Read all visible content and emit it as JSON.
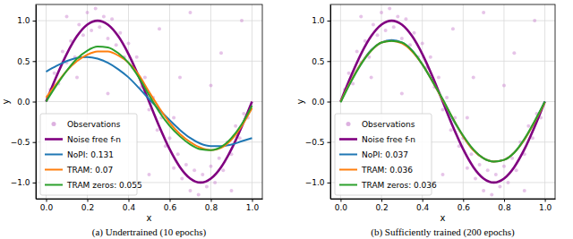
{
  "chart_data": [
    {
      "type": "line",
      "title": "(a) Undertrained (10 epochs)",
      "x_label": "x",
      "y_label": "y",
      "xlim": [
        -0.05,
        1.05
      ],
      "ylim": [
        -1.2,
        1.2
      ],
      "xticks": [
        {
          "value": 0,
          "label": "0.0"
        },
        {
          "value": 0.2,
          "label": "0.2"
        },
        {
          "value": 0.4,
          "label": "0.4"
        },
        {
          "value": 0.6,
          "label": "0.6"
        },
        {
          "value": 0.8,
          "label": "0.8"
        },
        {
          "value": 1,
          "label": "1.0"
        }
      ],
      "yticks": [
        {
          "value": -1,
          "label": "−1.0"
        },
        {
          "value": -0.5,
          "label": "−0.5"
        },
        {
          "value": 0,
          "label": "0.0"
        },
        {
          "value": 0.5,
          "label": "0.5"
        },
        {
          "value": 1,
          "label": "1.0"
        }
      ],
      "grid": true,
      "legend": "lower left",
      "x": [
        0,
        0.05,
        0.1,
        0.15,
        0.2,
        0.25,
        0.3,
        0.35,
        0.4,
        0.45,
        0.5,
        0.55,
        0.6,
        0.65,
        0.7,
        0.75,
        0.8,
        0.85,
        0.9,
        0.95,
        1
      ],
      "series": [
        {
          "name": "Observations",
          "type": "scatter",
          "marker": "circle",
          "color": "#c77dcc",
          "x": [
            0.02,
            0.04,
            0.06,
            0.08,
            0.1,
            0.12,
            0.14,
            0.16,
            0.18,
            0.2,
            0.22,
            0.24,
            0.26,
            0.28,
            0.3,
            0.32,
            0.34,
            0.36,
            0.38,
            0.4,
            0.42,
            0.44,
            0.46,
            0.48,
            0.5,
            0.52,
            0.54,
            0.56,
            0.58,
            0.6,
            0.62,
            0.64,
            0.66,
            0.68,
            0.7,
            0.72,
            0.74,
            0.76,
            0.78,
            0.8,
            0.82,
            0.84,
            0.86,
            0.88,
            0.9,
            0.92,
            0.94,
            0.96,
            0.98,
            0.1,
            0.3,
            0.55,
            0.65,
            0.7,
            0.85,
            0.9,
            0.62,
            0.15,
            0.8,
            0.95,
            0.5
          ],
          "values": [
            0.15,
            0.35,
            0.22,
            0.62,
            0.48,
            0.75,
            0.55,
            0.95,
            0.82,
            1.1,
            0.88,
            1.15,
            0.92,
            1.05,
            0.78,
            1.02,
            0.7,
            0.85,
            0.55,
            0.72,
            0.42,
            0.55,
            0.18,
            0.3,
            -0.1,
            0.05,
            -0.35,
            -0.2,
            -0.55,
            -0.45,
            -0.82,
            -0.65,
            -0.95,
            -0.78,
            -1.1,
            -0.85,
            -1.15,
            -0.9,
            -1.05,
            -0.8,
            -1.0,
            -0.7,
            -0.85,
            -0.5,
            -0.65,
            -0.3,
            -0.45,
            -0.15,
            -0.2,
            1.05,
            0.1,
            0.9,
            0.3,
            1.1,
            0.6,
            -1.1,
            -0.2,
            0.3,
            0.2,
            1.0,
            -0.9
          ]
        },
        {
          "name": "Noise free f-n",
          "type": "line",
          "color": "#800080",
          "values": [
            0,
            0.309,
            0.588,
            0.809,
            0.951,
            1,
            0.951,
            0.809,
            0.588,
            0.309,
            0,
            -0.309,
            -0.588,
            -0.809,
            -0.951,
            -1,
            -0.951,
            -0.809,
            -0.588,
            -0.309,
            0
          ]
        },
        {
          "name": "NoPI: 0.131",
          "type": "line",
          "color": "#1f77b4",
          "values": [
            0.37,
            0.44,
            0.5,
            0.54,
            0.55,
            0.53,
            0.48,
            0.4,
            0.3,
            0.17,
            0.03,
            -0.1,
            -0.23,
            -0.35,
            -0.45,
            -0.52,
            -0.55,
            -0.55,
            -0.53,
            -0.49,
            -0.45
          ]
        },
        {
          "name": "TRAM: 0.07",
          "type": "line",
          "color": "#ff7f0e",
          "values": [
            0.05,
            0.22,
            0.38,
            0.5,
            0.58,
            0.62,
            0.62,
            0.57,
            0.48,
            0.33,
            0.12,
            -0.08,
            -0.26,
            -0.4,
            -0.5,
            -0.57,
            -0.6,
            -0.57,
            -0.47,
            -0.3,
            -0.08
          ]
        },
        {
          "name": "TRAM zeros: 0.055",
          "type": "line",
          "color": "#2ca02c",
          "values": [
            0,
            0.2,
            0.38,
            0.53,
            0.63,
            0.68,
            0.67,
            0.6,
            0.48,
            0.3,
            0.08,
            -0.13,
            -0.3,
            -0.43,
            -0.53,
            -0.59,
            -0.6,
            -0.56,
            -0.45,
            -0.28,
            -0.05
          ]
        }
      ]
    },
    {
      "type": "line",
      "title": "(b) Sufficiently trained (200 epochs)",
      "x_label": "x",
      "y_label": "y",
      "xlim": [
        -0.05,
        1.05
      ],
      "ylim": [
        -1.2,
        1.2
      ],
      "xticks": [
        {
          "value": 0,
          "label": "0.0"
        },
        {
          "value": 0.2,
          "label": "0.2"
        },
        {
          "value": 0.4,
          "label": "0.4"
        },
        {
          "value": 0.6,
          "label": "0.6"
        },
        {
          "value": 0.8,
          "label": "0.8"
        },
        {
          "value": 1,
          "label": "1.0"
        }
      ],
      "yticks": [
        {
          "value": -1,
          "label": "−1.0"
        },
        {
          "value": -0.5,
          "label": "−0.5"
        },
        {
          "value": 0,
          "label": "0.0"
        },
        {
          "value": 0.5,
          "label": "0.5"
        },
        {
          "value": 1,
          "label": "1.0"
        }
      ],
      "grid": true,
      "legend": "lower left",
      "x": [
        0,
        0.05,
        0.1,
        0.15,
        0.2,
        0.25,
        0.3,
        0.35,
        0.4,
        0.45,
        0.5,
        0.55,
        0.6,
        0.65,
        0.7,
        0.75,
        0.8,
        0.85,
        0.9,
        0.95,
        1
      ],
      "series": [
        {
          "name": "Observations",
          "type": "scatter",
          "marker": "circle",
          "color": "#c77dcc",
          "x": [
            0.02,
            0.04,
            0.06,
            0.08,
            0.1,
            0.12,
            0.14,
            0.16,
            0.18,
            0.2,
            0.22,
            0.24,
            0.26,
            0.28,
            0.3,
            0.32,
            0.34,
            0.36,
            0.38,
            0.4,
            0.42,
            0.44,
            0.46,
            0.48,
            0.5,
            0.52,
            0.54,
            0.56,
            0.58,
            0.6,
            0.62,
            0.64,
            0.66,
            0.68,
            0.7,
            0.72,
            0.74,
            0.76,
            0.78,
            0.8,
            0.82,
            0.84,
            0.86,
            0.88,
            0.9,
            0.92,
            0.94,
            0.96,
            0.98,
            0.1,
            0.3,
            0.55,
            0.65,
            0.7,
            0.85,
            0.9,
            0.62,
            0.15,
            0.8,
            0.95,
            0.5
          ],
          "values": [
            0.15,
            0.35,
            0.22,
            0.62,
            0.48,
            0.75,
            0.55,
            0.95,
            0.82,
            1.1,
            0.88,
            1.15,
            0.92,
            1.05,
            0.78,
            1.02,
            0.7,
            0.85,
            0.55,
            0.72,
            0.42,
            0.55,
            0.18,
            0.3,
            -0.1,
            0.05,
            -0.35,
            -0.2,
            -0.55,
            -0.45,
            -0.82,
            -0.65,
            -0.95,
            -0.78,
            -1.1,
            -0.85,
            -1.15,
            -0.9,
            -1.05,
            -0.8,
            -1.0,
            -0.7,
            -0.85,
            -0.5,
            -0.65,
            -0.3,
            -0.45,
            -0.15,
            -0.2,
            1.05,
            0.1,
            0.9,
            0.3,
            1.1,
            0.6,
            -1.1,
            -0.2,
            0.3,
            0.2,
            1.0,
            -0.9
          ]
        },
        {
          "name": "Noise free f-n",
          "type": "line",
          "color": "#800080",
          "values": [
            0,
            0.309,
            0.588,
            0.809,
            0.951,
            1,
            0.951,
            0.809,
            0.588,
            0.309,
            0,
            -0.309,
            -0.588,
            -0.809,
            -0.951,
            -1,
            -0.951,
            -0.809,
            -0.588,
            -0.309,
            0
          ]
        },
        {
          "name": "NoPI: 0.037",
          "type": "line",
          "color": "#1f77b4",
          "values": [
            0,
            0.25,
            0.47,
            0.64,
            0.73,
            0.76,
            0.73,
            0.63,
            0.46,
            0.25,
            0.02,
            -0.22,
            -0.43,
            -0.6,
            -0.7,
            -0.74,
            -0.72,
            -0.63,
            -0.47,
            -0.25,
            0
          ]
        },
        {
          "name": "TRAM: 0.036",
          "type": "line",
          "color": "#ff7f0e",
          "values": [
            0,
            0.25,
            0.47,
            0.63,
            0.73,
            0.75,
            0.72,
            0.62,
            0.46,
            0.25,
            0.02,
            -0.21,
            -0.43,
            -0.6,
            -0.7,
            -0.74,
            -0.72,
            -0.63,
            -0.47,
            -0.25,
            -0.01
          ]
        },
        {
          "name": "TRAM zeros: 0.036",
          "type": "line",
          "color": "#2ca02c",
          "values": [
            -0.01,
            0.24,
            0.46,
            0.63,
            0.73,
            0.75,
            0.73,
            0.63,
            0.46,
            0.25,
            0.03,
            -0.21,
            -0.42,
            -0.59,
            -0.7,
            -0.74,
            -0.72,
            -0.63,
            -0.46,
            -0.24,
            0
          ]
        }
      ]
    }
  ]
}
